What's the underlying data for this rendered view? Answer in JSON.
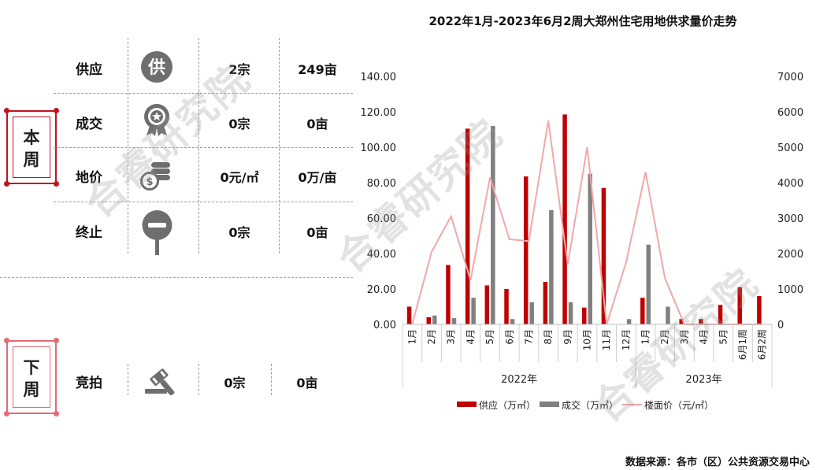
{
  "colors": {
    "brand_red": "#c0141c",
    "pink": "#e46a73",
    "supply": "#c00000",
    "deal": "#808080",
    "price": "#f4a7a7"
  },
  "this_week": {
    "label": "本周",
    "rows": [
      {
        "name": "供应",
        "icon": "supply-icon",
        "count": "2宗",
        "area": "249亩"
      },
      {
        "name": "成交",
        "icon": "award-icon",
        "count": "0宗",
        "area": "0亩"
      },
      {
        "name": "地价",
        "icon": "coins-icon",
        "count": "0元/㎡",
        "area": "0万/亩"
      },
      {
        "name": "终止",
        "icon": "stop-sign-icon",
        "count": "0宗",
        "area": "0亩"
      }
    ]
  },
  "next_week": {
    "label": "下周",
    "rows": [
      {
        "name": "竞拍",
        "icon": "gavel-icon",
        "count": "0宗",
        "area": "0亩"
      }
    ]
  },
  "watermark": "合睿研究院",
  "source": "数据来源：各市（区）公共资源交易中心",
  "chart_data": {
    "type": "bar",
    "title": "2022年1月-2023年6月2周大郑州住宅用地供求量价走势",
    "categories": [
      "1月",
      "2月",
      "3月",
      "4月",
      "5月",
      "6月",
      "7月",
      "8月",
      "9月",
      "10月",
      "11月",
      "12月",
      "1月",
      "2月",
      "3月",
      "4月",
      "5月",
      "6月1周",
      "6月2周"
    ],
    "groups": [
      {
        "label": "2022年",
        "count": 12
      },
      {
        "label": "2023年",
        "count": 7
      }
    ],
    "series": [
      {
        "name": "供应（万㎡）",
        "type": "bar",
        "axis": "left",
        "color": "#c00000",
        "values": [
          10,
          4,
          33.5,
          110.5,
          22,
          20,
          83.5,
          24,
          118.5,
          9.5,
          77,
          0,
          15,
          0,
          3,
          3,
          11,
          21,
          16
        ]
      },
      {
        "name": "成交（万㎡）",
        "type": "bar",
        "axis": "left",
        "color": "#808080",
        "values": [
          0,
          5,
          3.5,
          15,
          112,
          3,
          12.5,
          64.5,
          12.5,
          85,
          0,
          3,
          45,
          10,
          0,
          0,
          0,
          0,
          0
        ]
      },
      {
        "name": "楼面价（元/㎡）",
        "type": "line",
        "axis": "right",
        "color": "#f4a7a7",
        "values": [
          0,
          2050,
          3050,
          1250,
          4150,
          2400,
          2350,
          5750,
          1700,
          5000,
          0,
          1750,
          4300,
          1300,
          0,
          0,
          0,
          0,
          0
        ]
      }
    ],
    "y_left": {
      "min": 0,
      "max": 140,
      "step": 20,
      "ticks": [
        "0.00",
        "20.00",
        "40.00",
        "60.00",
        "80.00",
        "100.00",
        "120.00",
        "140.00"
      ]
    },
    "y_right": {
      "min": 0,
      "max": 7000,
      "step": 1000,
      "ticks": [
        "0",
        "1000",
        "2000",
        "3000",
        "4000",
        "5000",
        "6000",
        "7000"
      ]
    },
    "legend_position": "bottom",
    "grid": false
  }
}
